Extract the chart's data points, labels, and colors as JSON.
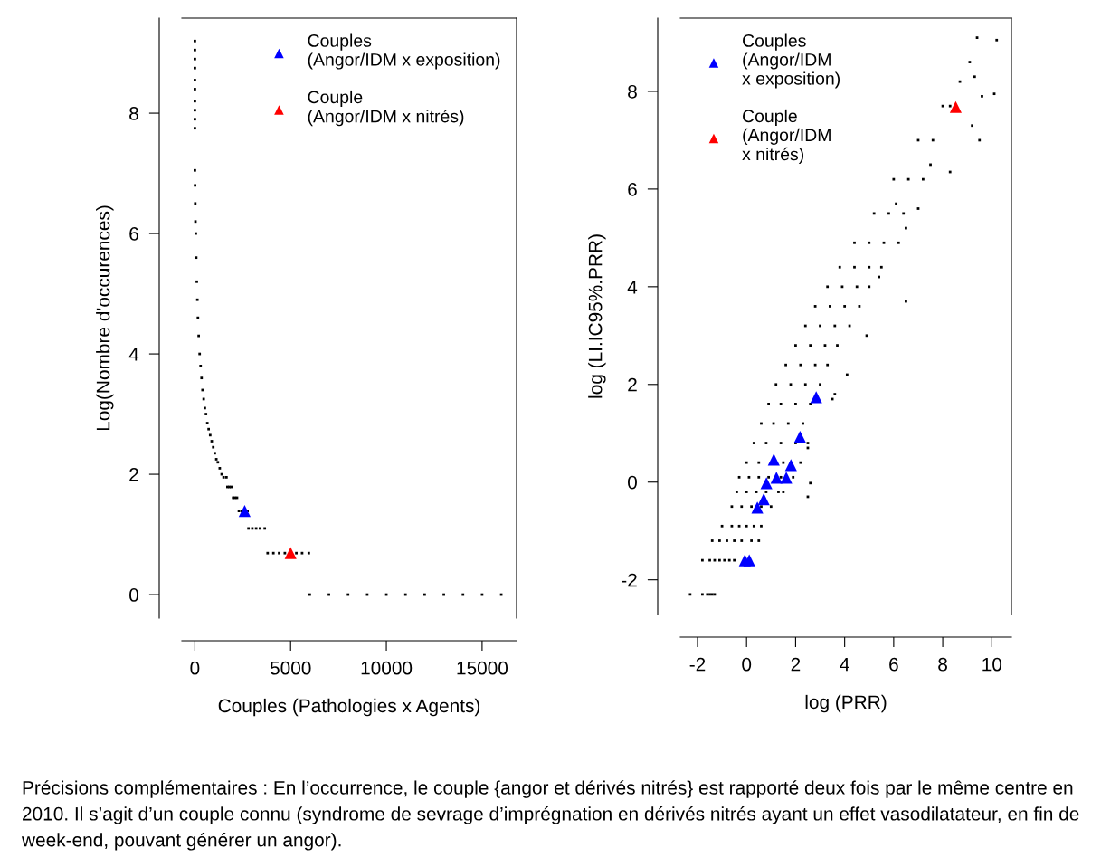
{
  "chart_data": [
    {
      "type": "scatter",
      "xlabel": "Couples (Pathologies x Agents)",
      "ylabel": "Log(Nombre d'occurences)",
      "xlim": [
        -680,
        16800
      ],
      "ylim": [
        -0.39,
        9.58
      ],
      "xticks": [
        0,
        5000,
        10000,
        15000
      ],
      "yticks": [
        0,
        2,
        4,
        6,
        8
      ],
      "grid": false,
      "legend": "top right",
      "series": [
        {
          "color": "#000000",
          "marker": "square",
          "x": [
            0,
            0,
            0,
            0,
            0,
            0,
            0,
            0,
            0,
            0,
            0,
            10,
            20,
            30,
            50,
            70,
            100,
            130,
            160,
            200,
            250,
            300,
            350,
            400,
            460,
            520,
            580,
            650,
            720,
            800,
            880,
            960,
            1040,
            1120,
            1200,
            1300,
            1400,
            1500,
            1650,
            1700,
            1800,
            1900,
            2000,
            2100,
            2200,
            2300,
            2450,
            2750,
            2800,
            3000,
            3200,
            3400,
            3650,
            3800,
            4100,
            4400,
            4700,
            5300,
            5600,
            5950,
            6000,
            7000,
            8000,
            9000,
            10000,
            11000,
            12000,
            13000,
            14000,
            15000,
            16000
          ],
          "values": [
            9.2,
            9.05,
            8.9,
            8.75,
            8.55,
            8.4,
            8.2,
            8.05,
            7.9,
            7.75,
            7.05,
            6.8,
            6.5,
            6.2,
            6.0,
            5.6,
            5.2,
            4.9,
            4.6,
            4.3,
            4.0,
            3.8,
            3.6,
            3.4,
            3.25,
            3.1,
            3.0,
            2.85,
            2.75,
            2.65,
            2.55,
            2.45,
            2.35,
            2.25,
            2.2,
            2.1,
            2.0,
            1.95,
            1.95,
            1.79,
            1.79,
            1.79,
            1.61,
            1.61,
            1.61,
            1.39,
            1.39,
            1.39,
            1.1,
            1.1,
            1.1,
            1.1,
            1.1,
            0.69,
            0.69,
            0.69,
            0.69,
            0.69,
            0.69,
            0.69,
            0,
            0,
            0,
            0,
            0,
            0,
            0,
            0,
            0,
            0,
            0
          ]
        },
        {
          "name": "Couples\n(Angor/IDM x exposition)",
          "color": "#0000ff",
          "marker": "triangle",
          "x": [
            2600
          ],
          "values": [
            1.39
          ]
        },
        {
          "name": "Couple\n(Angor/IDM x nitrés)",
          "color": "#ff0000",
          "marker": "triangle",
          "x": [
            5000
          ],
          "values": [
            0.69
          ]
        }
      ]
    },
    {
      "type": "scatter",
      "xlabel": "log (PRR)",
      "ylabel": "log (LI.IC95%.PRR)",
      "xlim": [
        -2.7,
        10.8
      ],
      "ylim": [
        -2.71,
        9.5
      ],
      "xticks": [
        {
          "value": -2,
          "label": "-2"
        },
        0,
        2,
        4,
        6,
        8,
        10
      ],
      "yticks": [
        {
          "value": -2,
          "label": "-2"
        },
        0,
        2,
        4,
        6,
        8
      ],
      "grid": false,
      "legend": "top left",
      "series": [
        {
          "color": "#000000",
          "marker": "square",
          "x": [
            -2.3,
            -1.8,
            -1.6,
            -1.5,
            -1.4,
            -1.3,
            -1.8,
            -1.5,
            -1.3,
            -1.1,
            -0.9,
            -0.7,
            -0.5,
            -1.4,
            -1.1,
            -0.8,
            -0.5,
            -0.2,
            0.2,
            0.5,
            -1.0,
            -0.6,
            -0.3,
            0.0,
            0.3,
            0.6,
            -0.6,
            -0.2,
            0.2,
            0.6,
            1.0,
            -0.4,
            0.0,
            0.4,
            0.8,
            1.3,
            -0.3,
            0.1,
            0.5,
            0.9,
            1.4,
            1.9,
            0.0,
            0.5,
            1.0,
            1.5,
            2.2,
            0.3,
            0.8,
            1.4,
            2.0,
            2.5,
            0.6,
            1.1,
            1.7,
            2.3,
            0.9,
            1.4,
            2.0,
            2.6,
            1.2,
            1.8,
            2.4,
            3.0,
            1.6,
            2.2,
            2.8,
            3.3,
            2.0,
            2.6,
            3.2,
            3.7,
            2.4,
            3.0,
            3.6,
            4.2,
            2.8,
            3.4,
            4.0,
            4.6,
            3.3,
            3.9,
            4.5,
            5.0,
            3.8,
            4.4,
            5.0,
            5.5,
            4.4,
            5.0,
            5.6,
            6.2,
            5.2,
            5.8,
            6.4,
            6.0,
            6.6,
            7.2,
            7.0,
            7.6,
            8.0,
            8.3,
            8.7,
            9.1,
            9.4,
            10.2,
            9.3,
            9.6,
            10.1,
            9.2,
            9.5,
            8.3,
            7.5,
            7.0,
            6.1,
            6.5,
            5.4,
            6.5,
            4.9,
            4.1,
            3.6,
            3.5,
            2.5,
            1.5,
            2.5,
            2.6
          ],
          "values": [
            -2.3,
            -2.3,
            -2.3,
            -2.3,
            -2.3,
            -2.3,
            -1.6,
            -1.6,
            -1.6,
            -1.6,
            -1.6,
            -1.6,
            -1.6,
            -1.2,
            -1.2,
            -1.2,
            -1.2,
            -1.2,
            -1.2,
            -1.2,
            -0.9,
            -0.9,
            -0.9,
            -0.9,
            -0.9,
            -0.9,
            -0.5,
            -0.5,
            -0.5,
            -0.5,
            -0.5,
            -0.2,
            -0.2,
            -0.2,
            -0.2,
            -0.2,
            0.1,
            0.1,
            0.1,
            0.1,
            0.1,
            0.1,
            0.4,
            0.4,
            null,
            0.4,
            0.4,
            0.8,
            0.8,
            0.8,
            0.8,
            0.8,
            1.2,
            1.2,
            1.2,
            1.2,
            1.6,
            1.6,
            1.6,
            1.6,
            2.0,
            2.0,
            2.0,
            2.0,
            2.4,
            2.4,
            2.4,
            2.4,
            2.8,
            2.8,
            2.8,
            2.8,
            3.2,
            3.2,
            3.2,
            3.2,
            3.6,
            3.6,
            3.6,
            3.6,
            4.0,
            4.0,
            4.0,
            4.0,
            4.4,
            4.4,
            4.4,
            4.4,
            4.9,
            4.9,
            4.9,
            4.9,
            5.5,
            5.5,
            5.5,
            6.2,
            6.2,
            6.2,
            7.0,
            7.0,
            7.7,
            7.7,
            8.2,
            8.6,
            9.1,
            9.05,
            8.3,
            7.9,
            7.95,
            7.3,
            7.0,
            6.35,
            6.5,
            5.6,
            5.7,
            5.2,
            4.2,
            3.7,
            3.0,
            2.2,
            1.8,
            1.7,
            0.7,
            -0.2,
            -0.3,
            -0.02
          ]
        },
        {
          "name": "Couples\n(Angor/IDM\nx exposition)",
          "color": "#0000ff",
          "marker": "triangle",
          "x": [
            2.84,
            2.18,
            1.11,
            1.81,
            1.22,
            1.62,
            0.81,
            0.7,
            0.44,
            -0.07,
            0.11
          ],
          "values": [
            1.74,
            0.93,
            0.46,
            0.35,
            0.09,
            0.09,
            -0.02,
            -0.35,
            -0.52,
            -1.6,
            -1.6
          ]
        },
        {
          "name": "Couple\n(Angor/IDM\nx nitrés)",
          "color": "#ff0000",
          "marker": "triangle",
          "x": [
            8.53
          ],
          "values": [
            7.68
          ]
        }
      ],
      "annotations": [
        "Précisions complémentaires : En l’occurrence, le couple {angor et dérivés nitrés} est rapporté deux fois par le même centre en 2010. Il s’agit d’un couple connu (syndrome de sevrage d’imprégnation en dérivés nitrés ayant un effet vasodilatateur, en fin de week-end, pouvant générer un angor)."
      ]
    }
  ]
}
